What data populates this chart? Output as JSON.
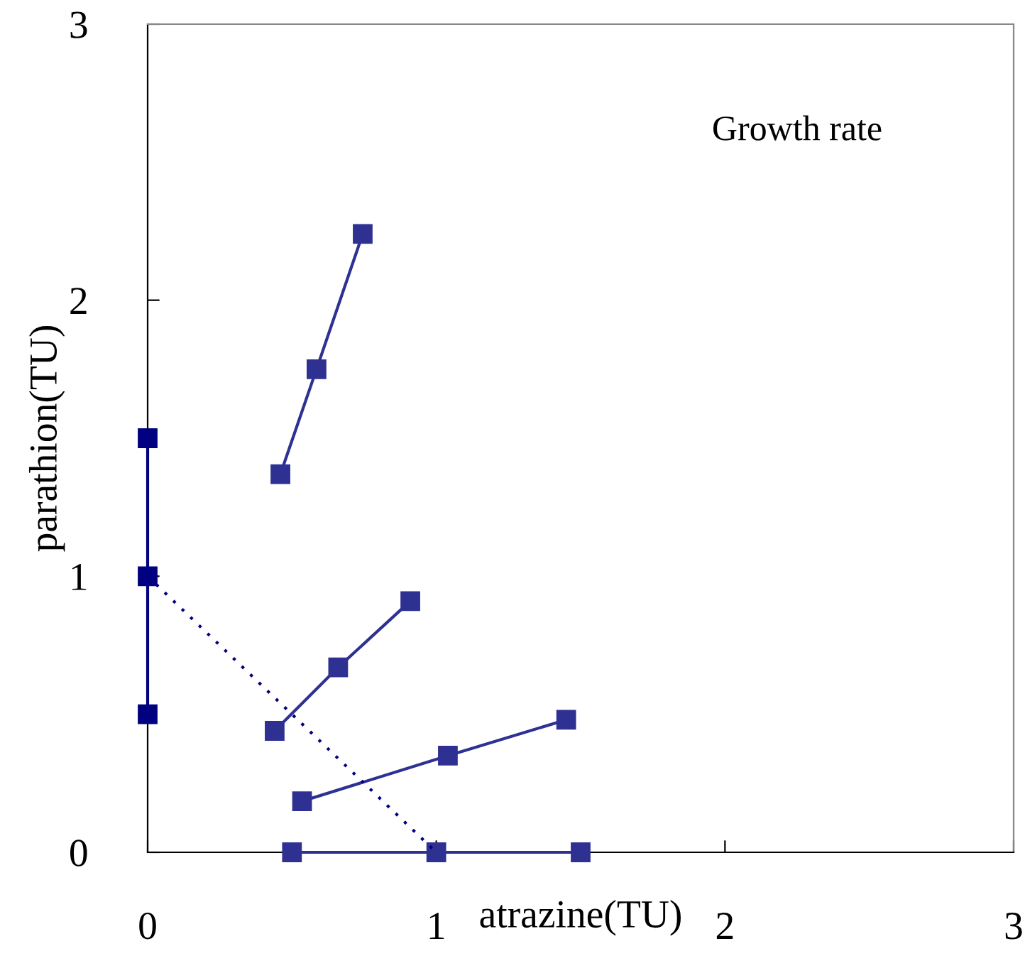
{
  "chart_data": {
    "type": "line",
    "xlabel": "atrazine(TU)",
    "ylabel": "parathion(TU)",
    "annotations": [
      "Growth rate"
    ],
    "xlim": [
      0,
      3
    ],
    "ylim": [
      0,
      3
    ],
    "xticks": [
      0,
      1,
      2,
      3
    ],
    "yticks": [
      0,
      1,
      2,
      3
    ],
    "grid": false,
    "legend": false,
    "marker": "square",
    "line_style": "solid",
    "series": [
      {
        "color": "#2e3192",
        "x": [
          0.46,
          0.585,
          0.745
        ],
        "values": [
          1.37,
          1.75,
          2.24
        ]
      },
      {
        "color": "#2e3192",
        "x": [
          0.44,
          0.66,
          0.91
        ],
        "values": [
          0.44,
          0.67,
          0.91
        ]
      },
      {
        "color": "#2e3192",
        "x": [
          0.535,
          1.04,
          1.45
        ],
        "values": [
          0.185,
          0.35,
          0.48
        ]
      },
      {
        "color": "#2e3192",
        "x": [
          0.5,
          1.0,
          1.5
        ],
        "values": [
          0,
          0,
          0
        ]
      },
      {
        "color": "#000080",
        "x": [
          0,
          0,
          0
        ],
        "values": [
          1.5,
          1.0,
          0.5
        ]
      },
      {
        "color": "#000080",
        "x": [
          0,
          1
        ],
        "values": [
          1,
          0
        ],
        "marker": "none",
        "line_style": "dotted"
      }
    ]
  }
}
